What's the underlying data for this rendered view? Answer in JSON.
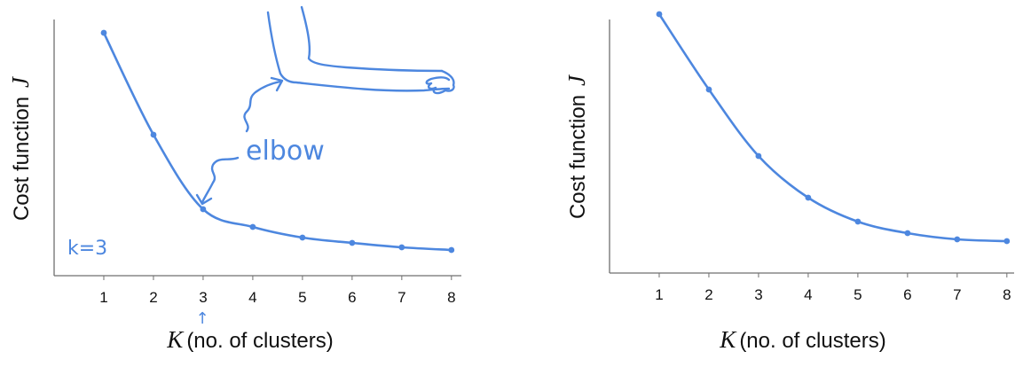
{
  "chart_data": [
    {
      "type": "line",
      "x": [
        1,
        2,
        3,
        4,
        5,
        6,
        7,
        8
      ],
      "values": [
        27.4,
        15.9,
        7.5,
        5.5,
        4.3,
        3.7,
        3.2,
        2.9
      ],
      "xlabel_var": "K",
      "xlabel_text": "(no. of clusters)",
      "ylabel_text": "Cost function",
      "ylabel_var": "J",
      "xlim": [
        0,
        8.5
      ],
      "ylim": [
        0,
        30
      ],
      "grid": false,
      "annotations": {
        "elbow": "elbow",
        "k_note": "k=3",
        "arrow_glyph": "↑"
      }
    },
    {
      "type": "line",
      "x": [
        1,
        2,
        3,
        4,
        5,
        6,
        7,
        8
      ],
      "values": [
        29.2,
        20.7,
        13.2,
        8.5,
        5.8,
        4.5,
        3.8,
        3.6
      ],
      "xlabel_var": "K",
      "xlabel_text": "(no. of clusters)",
      "ylabel_text": "Cost function",
      "ylabel_var": "J",
      "xlim": [
        0,
        8.5
      ],
      "ylim": [
        0,
        30
      ],
      "grid": false
    }
  ]
}
